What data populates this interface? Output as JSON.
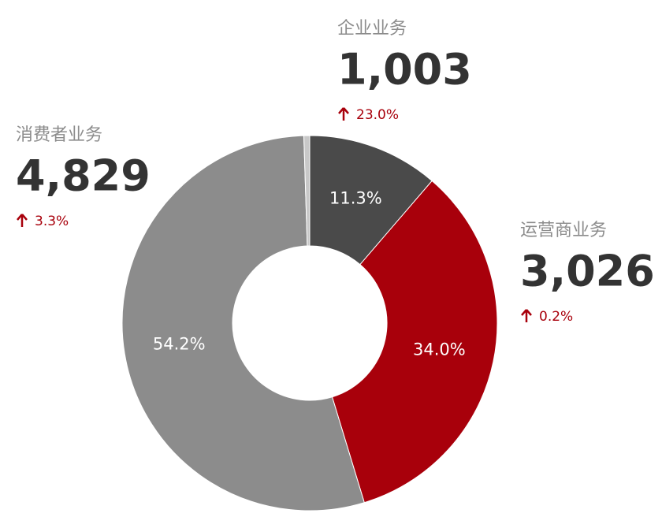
{
  "chart_data": {
    "type": "donut",
    "categories": [
      "企业业务",
      "运营商业务",
      "消费者业务",
      null
    ],
    "values": [
      11.3,
      34.0,
      54.2,
      0.5
    ],
    "value_labels": [
      "11.3%",
      "34.0%",
      "54.2%",
      null
    ],
    "colors": [
      "#4a4a4a",
      "#a8000b",
      "#8c8c8c",
      "#c8c8c8"
    ],
    "amounts": [
      "1,003",
      "3,026",
      "4,829",
      null
    ],
    "changes": [
      "23.0%",
      "0.2%",
      "3.3%",
      null
    ],
    "change_color": "#a8000b"
  }
}
